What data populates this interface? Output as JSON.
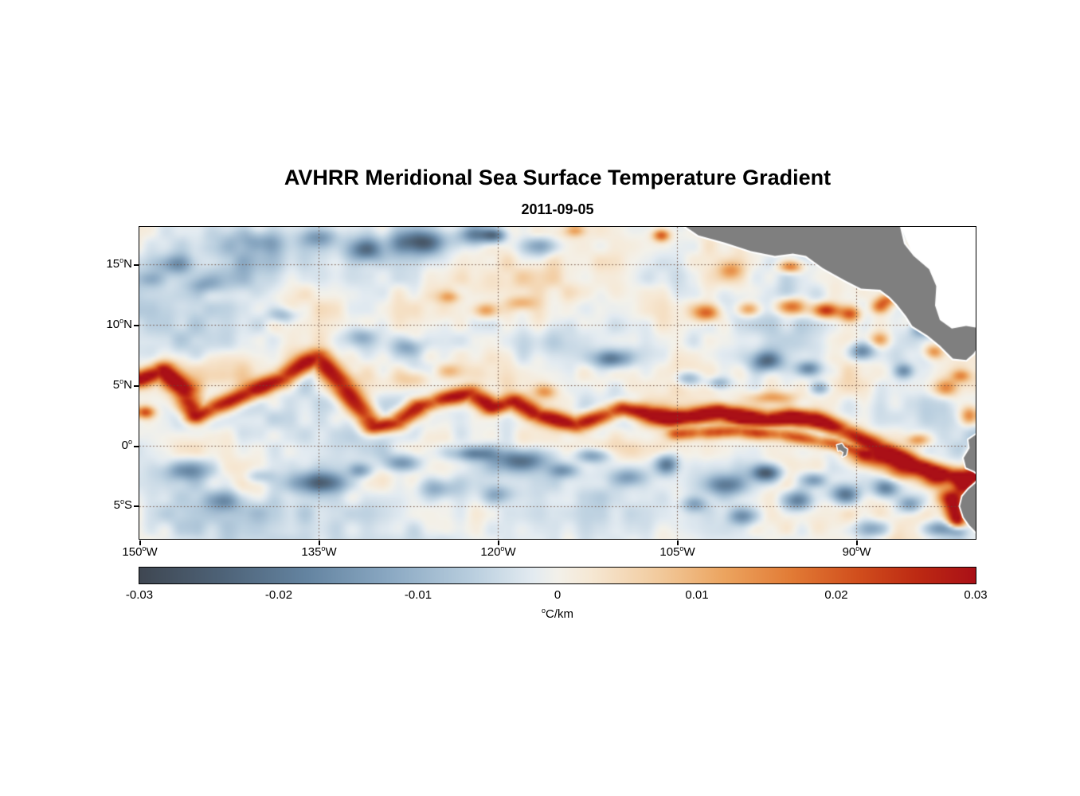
{
  "title": "AVHRR Meridional Sea Surface Temperature Gradient",
  "subtitle": "2011-09-05",
  "chart_data": {
    "type": "heatmap",
    "title": "AVHRR Meridional Sea Surface Temperature Gradient",
    "subtitle": "2011-09-05",
    "lon_range": [
      -150,
      -80
    ],
    "lat_range": [
      -7.7,
      18.1
    ],
    "grid": true,
    "grid_color": "#6b4a3a",
    "land_color": "#7f7f7f",
    "coast_color": "#ffffff",
    "nodata_color": "#ffffff",
    "x_ticks": [
      {
        "lon": -150,
        "deg": "150",
        "hem": "W"
      },
      {
        "lon": -135,
        "deg": "135",
        "hem": "W"
      },
      {
        "lon": -120,
        "deg": "120",
        "hem": "W"
      },
      {
        "lon": -105,
        "deg": "105",
        "hem": "W"
      },
      {
        "lon": -90,
        "deg": "90",
        "hem": "W"
      }
    ],
    "y_ticks": [
      {
        "lat": 15,
        "deg": "15",
        "hem": "N"
      },
      {
        "lat": 10,
        "deg": "10",
        "hem": "N"
      },
      {
        "lat": 5,
        "deg": "5",
        "hem": "N"
      },
      {
        "lat": 0,
        "deg": "0",
        "hem": ""
      },
      {
        "lat": -5,
        "deg": "5",
        "hem": "S"
      }
    ],
    "colorbar": {
      "min": -0.03,
      "max": 0.03,
      "ticks": [
        "-0.03",
        "-0.02",
        "-0.01",
        "0",
        "0.01",
        "0.02",
        "0.03"
      ],
      "unit_sup": "o",
      "unit_rest": "C/km"
    },
    "colormap": [
      [
        0.0,
        "#3f4752"
      ],
      [
        0.1,
        "#4e6378"
      ],
      [
        0.2,
        "#6484a1"
      ],
      [
        0.3,
        "#8ba9c3"
      ],
      [
        0.4,
        "#bacfdf"
      ],
      [
        0.47,
        "#e3ebf1"
      ],
      [
        0.5,
        "#f3f1ea"
      ],
      [
        0.54,
        "#f6e8d4"
      ],
      [
        0.62,
        "#f2cb9e"
      ],
      [
        0.7,
        "#eca45f"
      ],
      [
        0.78,
        "#e27b35"
      ],
      [
        0.86,
        "#d14e1d"
      ],
      [
        0.93,
        "#bd2a13"
      ],
      [
        1.0,
        "#aa1017"
      ]
    ],
    "land": {
      "central_america": [
        [
          -104.7,
          18.4
        ],
        [
          -103.2,
          17.4
        ],
        [
          -101.0,
          16.8
        ],
        [
          -98.8,
          16.1
        ],
        [
          -96.8,
          15.7
        ],
        [
          -95.3,
          15.9
        ],
        [
          -94.2,
          15.7
        ],
        [
          -92.8,
          14.7
        ],
        [
          -91.0,
          13.7
        ],
        [
          -89.6,
          13.0
        ],
        [
          -88.0,
          12.9
        ],
        [
          -87.2,
          12.3
        ],
        [
          -86.6,
          11.7
        ],
        [
          -85.8,
          10.7
        ],
        [
          -85.3,
          9.9
        ],
        [
          -84.0,
          9.1
        ],
        [
          -83.0,
          8.3
        ],
        [
          -81.9,
          7.2
        ],
        [
          -80.8,
          7.1
        ],
        [
          -80.2,
          7.6
        ],
        [
          -79.8,
          8.2
        ],
        [
          -79.2,
          8.9
        ],
        [
          -79.5,
          9.7
        ],
        [
          -80.8,
          9.9
        ],
        [
          -82.0,
          9.7
        ],
        [
          -83.0,
          10.4
        ],
        [
          -83.4,
          11.6
        ],
        [
          -83.3,
          13.2
        ],
        [
          -83.9,
          14.6
        ],
        [
          -85.2,
          15.7
        ],
        [
          -86.0,
          16.7
        ],
        [
          -86.4,
          18.4
        ]
      ],
      "caribbean_nodata": [
        [
          -86.4,
          18.4
        ],
        [
          -85.2,
          15.7
        ],
        [
          -83.9,
          14.6
        ],
        [
          -83.3,
          13.2
        ],
        [
          -83.4,
          11.6
        ],
        [
          -83.0,
          10.4
        ],
        [
          -82.0,
          9.7
        ],
        [
          -80.8,
          9.9
        ],
        [
          -79.5,
          9.7
        ],
        [
          -79.0,
          9.2
        ],
        [
          -76.0,
          9.2
        ],
        [
          -76.0,
          18.4
        ]
      ],
      "south_america": [
        [
          -80.0,
          0.9
        ],
        [
          -80.6,
          0.5
        ],
        [
          -80.5,
          -0.2
        ],
        [
          -81.0,
          -1.0
        ],
        [
          -80.8,
          -1.8
        ],
        [
          -80.1,
          -2.1
        ],
        [
          -79.6,
          -2.5
        ],
        [
          -80.0,
          -3.1
        ],
        [
          -80.6,
          -3.6
        ],
        [
          -81.1,
          -4.2
        ],
        [
          -81.3,
          -5.0
        ],
        [
          -81.0,
          -5.9
        ],
        [
          -80.5,
          -6.6
        ],
        [
          -79.8,
          -7.3
        ],
        [
          -79.2,
          -8.2
        ],
        [
          -76.0,
          -8.2
        ],
        [
          -76.0,
          0.9
        ]
      ],
      "galapagos": [
        [
          -91.6,
          0.05
        ],
        [
          -91.2,
          0.15
        ],
        [
          -91.0,
          -0.15
        ],
        [
          -90.75,
          -0.3
        ],
        [
          -90.85,
          -0.75
        ],
        [
          -91.15,
          -0.9
        ],
        [
          -91.05,
          -0.55
        ],
        [
          -91.35,
          -0.35
        ],
        [
          -91.5,
          -0.4
        ]
      ]
    },
    "field": {
      "base": -0.0012,
      "noise": {
        "amp1": 0.0045,
        "scale1": 2.8,
        "amp2": 0.0028,
        "scale2": 1.3
      },
      "fronts": [
        {
          "amp": 0.03,
          "sw": 1.1,
          "sh": 0.62,
          "path": [
            [
              -150,
              5.5
            ],
            [
              -148,
              6.3
            ],
            [
              -146.3,
              4.6
            ],
            [
              -145.3,
              2.5
            ],
            [
              -143.8,
              3.1
            ],
            [
              -141,
              4.3
            ],
            [
              -138,
              5.6
            ],
            [
              -136,
              6.9
            ],
            [
              -135,
              7.4
            ],
            [
              -133.5,
              5.6
            ],
            [
              -132,
              3.6
            ],
            [
              -130.3,
              1.6
            ],
            [
              -128.5,
              1.9
            ],
            [
              -126.5,
              3.3
            ],
            [
              -124.5,
              3.9
            ],
            [
              -122.3,
              4.4
            ],
            [
              -120.5,
              3.2
            ],
            [
              -118.5,
              3.7
            ],
            [
              -117,
              2.7
            ],
            [
              -115.5,
              2.3
            ],
            [
              -113.5,
              1.7
            ],
            [
              -111.5,
              2.4
            ],
            [
              -109.5,
              3.1
            ],
            [
              -107.5,
              2.7
            ],
            [
              -105.5,
              2.3
            ],
            [
              -103.5,
              2.5
            ],
            [
              -101.5,
              2.9
            ],
            [
              -99.5,
              2.4
            ],
            [
              -97.5,
              2.1
            ],
            [
              -95.5,
              2.4
            ],
            [
              -93.5,
              2.2
            ],
            [
              -91.5,
              1.5
            ],
            [
              -90,
              0.8
            ],
            [
              -88.5,
              0.1
            ],
            [
              -87,
              -0.6
            ],
            [
              -85.5,
              -1.3
            ],
            [
              -84,
              -1.9
            ],
            [
              -82.5,
              -2.3
            ],
            [
              -81,
              -2.6
            ],
            [
              -80,
              -2.4
            ]
          ]
        },
        {
          "amp": 0.02,
          "sw": 0.8,
          "sh": 0.5,
          "path": [
            [
              -105,
              1.0
            ],
            [
              -100,
              1.2
            ],
            [
              -96,
              0.9
            ],
            [
              -92,
              0.2
            ],
            [
              -89,
              -0.6
            ]
          ]
        }
      ],
      "blobs": [
        [
          -149.5,
          2.8,
          0.8,
          0.5,
          0.022
        ],
        [
          -143,
          6,
          4,
          1.5,
          0.006
        ],
        [
          -127,
          5.5,
          1.5,
          0.8,
          0.01
        ],
        [
          -124,
          6.2,
          1.2,
          0.6,
          0.009
        ],
        [
          -121,
          11.2,
          1.0,
          0.6,
          0.013
        ],
        [
          -118,
          11.8,
          1.2,
          0.6,
          0.011
        ],
        [
          -124,
          12.3,
          1.0,
          0.5,
          0.01
        ],
        [
          -121,
          13.8,
          5,
          1.2,
          0.005
        ],
        [
          -116,
          4.5,
          1.0,
          0.6,
          0.014
        ],
        [
          -113.5,
          17.8,
          0.9,
          0.5,
          0.012
        ],
        [
          -106.3,
          17.4,
          0.7,
          0.5,
          0.022
        ],
        [
          -106,
          2.3,
          2,
          0.8,
          0.012
        ],
        [
          -100,
          2.5,
          2.5,
          0.8,
          0.012
        ],
        [
          -94,
          2.2,
          2,
          0.8,
          0.012
        ],
        [
          -102.5,
          11.0,
          1.1,
          0.7,
          0.02
        ],
        [
          -99,
          11.3,
          1.0,
          0.6,
          0.017
        ],
        [
          -95.5,
          11.5,
          1.2,
          0.7,
          0.024
        ],
        [
          -92.5,
          11.2,
          1.1,
          0.6,
          0.026
        ],
        [
          -90.5,
          10.9,
          0.9,
          0.6,
          0.02
        ],
        [
          -95.5,
          14.8,
          1.0,
          0.5,
          0.02
        ],
        [
          -100.5,
          14.5,
          1.0,
          0.7,
          0.011
        ],
        [
          -97,
          4.0,
          2.0,
          0.5,
          0.012
        ],
        [
          -88,
          8.8,
          0.8,
          0.6,
          0.014
        ],
        [
          -88,
          11.5,
          0.8,
          0.6,
          0.02
        ],
        [
          -87.3,
          12.1,
          0.8,
          0.5,
          0.016
        ],
        [
          -83.5,
          7.8,
          0.8,
          0.6,
          0.016
        ],
        [
          -82.5,
          4.8,
          1.0,
          0.7,
          0.016
        ],
        [
          -81.2,
          5.8,
          0.8,
          0.5,
          0.012
        ],
        [
          -80.5,
          2.5,
          0.8,
          0.8,
          0.02
        ],
        [
          -88.5,
          -1.0,
          2.0,
          0.8,
          0.024
        ],
        [
          -86,
          -2.0,
          1.5,
          0.8,
          0.02
        ],
        [
          -83.5,
          -2.8,
          1.2,
          0.7,
          0.02
        ],
        [
          -82.3,
          -4.2,
          1.0,
          0.7,
          0.022
        ],
        [
          -81.0,
          -3.2,
          0.8,
          0.8,
          0.028
        ],
        [
          -81.8,
          -5.2,
          0.9,
          1.0,
          0.03
        ],
        [
          -81.5,
          -6.3,
          0.7,
          0.7,
          0.026
        ],
        [
          -80.2,
          -1.0,
          0.5,
          0.6,
          0.026
        ],
        [
          -84.8,
          0.5,
          1.0,
          0.5,
          0.014
        ],
        [
          -126.5,
          16.8,
          2.2,
          1.0,
          -0.026
        ],
        [
          -131,
          16.2,
          1.5,
          0.9,
          -0.018
        ],
        [
          -122,
          17.5,
          1.4,
          0.8,
          -0.02
        ],
        [
          -120.3,
          17.4,
          1.0,
          0.6,
          -0.022
        ],
        [
          -116.5,
          16.5,
          1.5,
          0.8,
          -0.014
        ],
        [
          -135,
          17.3,
          1.5,
          0.8,
          -0.014
        ],
        [
          -140,
          16.8,
          2,
          0.9,
          -0.009
        ],
        [
          -147,
          15.0,
          1.6,
          0.8,
          -0.013
        ],
        [
          -149,
          13.8,
          1.2,
          0.7,
          -0.011
        ],
        [
          -144.5,
          13.3,
          1.5,
          0.7,
          -0.009
        ],
        [
          -138,
          10.8,
          1.2,
          0.6,
          -0.01
        ],
        [
          -127.5,
          8.2,
          1.2,
          0.7,
          -0.011
        ],
        [
          -131.5,
          9.0,
          1.3,
          0.7,
          -0.009
        ],
        [
          -97,
          17.2,
          1.3,
          0.7,
          -0.013
        ],
        [
          -92,
          16.3,
          1.5,
          0.9,
          -0.011
        ],
        [
          -110.5,
          7.2,
          1.5,
          0.7,
          -0.019
        ],
        [
          -104,
          5.6,
          1.1,
          0.6,
          -0.013
        ],
        [
          -97.5,
          7.0,
          1.3,
          0.8,
          -0.021
        ],
        [
          -94,
          6.4,
          1.0,
          0.6,
          -0.016
        ],
        [
          -89.5,
          7.8,
          1.0,
          0.7,
          -0.019
        ],
        [
          -86,
          6.2,
          0.8,
          0.6,
          -0.016
        ],
        [
          -84.5,
          9.6,
          0.9,
          0.6,
          -0.014
        ],
        [
          -101.5,
          5.2,
          1.0,
          0.5,
          -0.011
        ],
        [
          -93,
          4.8,
          0.8,
          0.5,
          -0.011
        ],
        [
          -146,
          -2.0,
          2.0,
          0.8,
          -0.013
        ],
        [
          -143,
          -4.5,
          1.5,
          0.8,
          -0.011
        ],
        [
          -140,
          -2.5,
          1.2,
          0.6,
          -0.009
        ],
        [
          -135,
          -3.0,
          2.4,
          0.9,
          -0.023
        ],
        [
          -131.5,
          -2.0,
          1.0,
          0.6,
          -0.014
        ],
        [
          -128,
          -1.4,
          1.5,
          0.7,
          -0.016
        ],
        [
          -125,
          -3.5,
          1.5,
          0.8,
          -0.011
        ],
        [
          -122,
          -0.6,
          1.8,
          0.6,
          -0.018
        ],
        [
          -118,
          -1.2,
          2.2,
          0.9,
          -0.022
        ],
        [
          -120,
          -4.0,
          1.2,
          0.7,
          -0.009
        ],
        [
          -114.5,
          -2.0,
          1.2,
          0.6,
          -0.014
        ],
        [
          -112,
          -0.8,
          1.4,
          0.6,
          -0.015
        ],
        [
          -109,
          -2.6,
          1.3,
          0.7,
          -0.012
        ],
        [
          -105.8,
          -1.5,
          1.0,
          0.8,
          -0.02
        ],
        [
          -103.5,
          -4.8,
          1.0,
          0.6,
          -0.011
        ],
        [
          -101,
          -3.2,
          1.5,
          0.8,
          -0.016
        ],
        [
          -99.5,
          -5.8,
          1.2,
          0.7,
          -0.014
        ],
        [
          -97.5,
          -2.2,
          1.2,
          0.7,
          -0.026
        ],
        [
          -95,
          -4.5,
          1.3,
          0.8,
          -0.018
        ],
        [
          -93.5,
          -2.8,
          1.0,
          0.6,
          -0.014
        ],
        [
          -91,
          -4.0,
          1.3,
          0.8,
          -0.02
        ],
        [
          -88.5,
          -6.8,
          1.5,
          0.7,
          -0.013
        ],
        [
          -87.5,
          -3.5,
          1.0,
          0.7,
          -0.016
        ],
        [
          -85.5,
          -4.8,
          1.0,
          0.7,
          -0.016
        ],
        [
          -83,
          -6.8,
          1.2,
          0.6,
          -0.014
        ],
        [
          -81.5,
          -6.9,
          0.8,
          0.6,
          -0.018
        ],
        [
          -140,
          15.5,
          8,
          2.5,
          -0.005
        ],
        [
          -147,
          10.5,
          4,
          2,
          -0.004
        ],
        [
          -120,
          -5.5,
          15,
          2,
          -0.003
        ],
        [
          -140,
          -5.5,
          10,
          2,
          -0.003
        ]
      ]
    }
  }
}
